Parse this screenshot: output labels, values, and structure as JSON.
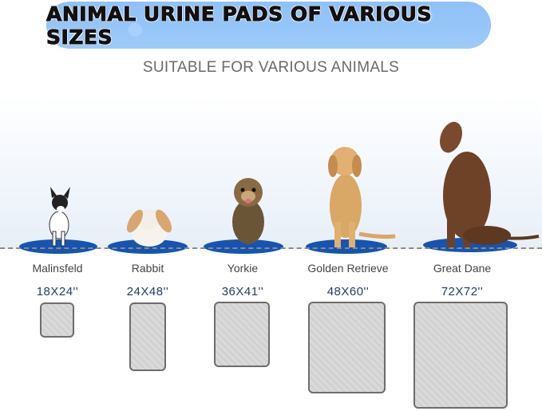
{
  "banner": {
    "title": "ANIMAL URINE PADS OF VARIOUS SIZES",
    "color": "#9ccaf9"
  },
  "subtitle": "SUITABLE FOR VARIOUS ANIMALS",
  "mat_color": "#1554b0",
  "animals": [
    {
      "name": "Malinsfeld",
      "size": "18X24''"
    },
    {
      "name": "Rabbit",
      "size": "24X48''"
    },
    {
      "name": "Yorkie",
      "size": "36X41''"
    },
    {
      "name": "Golden Retrieve",
      "size": "48X60''"
    },
    {
      "name": "Great Dane",
      "size": "72X72''"
    }
  ]
}
